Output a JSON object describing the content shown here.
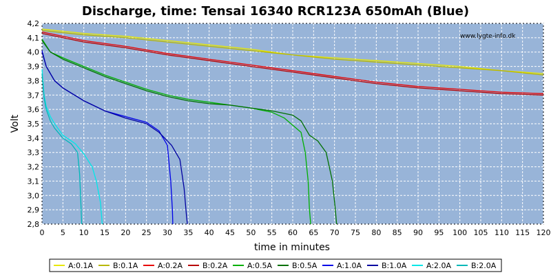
{
  "chart_data": {
    "type": "line",
    "title": "Discharge, time: Tensai 16340 RCR123A 650mAh (Blue)",
    "xlabel": "time in minutes",
    "ylabel": "Volt",
    "watermark": "www.lygte-info.dk",
    "xlim": [
      0,
      120
    ],
    "ylim": [
      2.8,
      4.2
    ],
    "xticks": [
      0,
      5,
      10,
      15,
      20,
      25,
      30,
      35,
      40,
      45,
      50,
      55,
      60,
      65,
      70,
      75,
      80,
      85,
      90,
      95,
      100,
      105,
      110,
      115,
      120
    ],
    "yticks": [
      "2,8",
      "2,9",
      "3,0",
      "3,1",
      "3,2",
      "3,3",
      "3,4",
      "3,5",
      "3,6",
      "3,7",
      "3,8",
      "3,9",
      "4,0",
      "4,1",
      "4,2"
    ],
    "grid": true,
    "legend_position": "bottom",
    "background": "#98b4d8",
    "series": [
      {
        "name": "A:0.1A",
        "color": "#e8e800",
        "points": [
          [
            0,
            4.16
          ],
          [
            10,
            4.13
          ],
          [
            20,
            4.11
          ],
          [
            30,
            4.08
          ],
          [
            40,
            4.05
          ],
          [
            50,
            4.02
          ],
          [
            60,
            3.98
          ],
          [
            70,
            3.96
          ],
          [
            80,
            3.94
          ],
          [
            90,
            3.92
          ],
          [
            100,
            3.9
          ],
          [
            110,
            3.87
          ],
          [
            120,
            3.85
          ]
        ]
      },
      {
        "name": "B:0.1A",
        "color": "#b8b800",
        "points": [
          [
            0,
            4.15
          ],
          [
            10,
            4.12
          ],
          [
            20,
            4.1
          ],
          [
            30,
            4.07
          ],
          [
            40,
            4.04
          ],
          [
            50,
            4.01
          ],
          [
            60,
            3.98
          ],
          [
            70,
            3.95
          ],
          [
            80,
            3.93
          ],
          [
            90,
            3.91
          ],
          [
            100,
            3.89
          ],
          [
            110,
            3.87
          ],
          [
            120,
            3.84
          ]
        ]
      },
      {
        "name": "A:0.2A",
        "color": "#e80000",
        "points": [
          [
            0,
            4.14
          ],
          [
            10,
            4.08
          ],
          [
            20,
            4.04
          ],
          [
            30,
            3.99
          ],
          [
            40,
            3.95
          ],
          [
            50,
            3.91
          ],
          [
            60,
            3.87
          ],
          [
            70,
            3.83
          ],
          [
            80,
            3.79
          ],
          [
            90,
            3.76
          ],
          [
            100,
            3.74
          ],
          [
            110,
            3.72
          ],
          [
            120,
            3.71
          ]
        ]
      },
      {
        "name": "B:0.2A",
        "color": "#b80000",
        "points": [
          [
            0,
            4.13
          ],
          [
            10,
            4.07
          ],
          [
            20,
            4.03
          ],
          [
            30,
            3.98
          ],
          [
            40,
            3.94
          ],
          [
            50,
            3.9
          ],
          [
            60,
            3.86
          ],
          [
            70,
            3.82
          ],
          [
            80,
            3.78
          ],
          [
            90,
            3.75
          ],
          [
            100,
            3.73
          ],
          [
            110,
            3.71
          ],
          [
            120,
            3.7
          ]
        ]
      },
      {
        "name": "A:0.5A",
        "color": "#00b000",
        "points": [
          [
            0,
            4.09
          ],
          [
            2,
            4.0
          ],
          [
            5,
            3.96
          ],
          [
            10,
            3.9
          ],
          [
            15,
            3.84
          ],
          [
            20,
            3.79
          ],
          [
            25,
            3.74
          ],
          [
            30,
            3.7
          ],
          [
            35,
            3.67
          ],
          [
            40,
            3.65
          ],
          [
            45,
            3.63
          ],
          [
            50,
            3.61
          ],
          [
            55,
            3.58
          ],
          [
            58,
            3.54
          ],
          [
            60,
            3.49
          ],
          [
            62,
            3.44
          ],
          [
            63,
            3.3
          ],
          [
            63.7,
            3.1
          ],
          [
            64,
            2.9
          ],
          [
            64.3,
            2.8
          ]
        ]
      },
      {
        "name": "B:0.5A",
        "color": "#007000",
        "points": [
          [
            0,
            4.08
          ],
          [
            2,
            4.0
          ],
          [
            5,
            3.95
          ],
          [
            10,
            3.89
          ],
          [
            15,
            3.83
          ],
          [
            20,
            3.78
          ],
          [
            25,
            3.73
          ],
          [
            30,
            3.69
          ],
          [
            35,
            3.66
          ],
          [
            40,
            3.64
          ],
          [
            45,
            3.63
          ],
          [
            50,
            3.61
          ],
          [
            55,
            3.59
          ],
          [
            60,
            3.56
          ],
          [
            62,
            3.52
          ],
          [
            63,
            3.47
          ],
          [
            64,
            3.42
          ],
          [
            66,
            3.38
          ],
          [
            68,
            3.3
          ],
          [
            69.5,
            3.1
          ],
          [
            70.2,
            2.9
          ],
          [
            70.5,
            2.8
          ]
        ]
      },
      {
        "name": "A:1.0A",
        "color": "#0000e8",
        "points": [
          [
            0,
            4.01
          ],
          [
            1,
            3.9
          ],
          [
            3,
            3.8
          ],
          [
            5,
            3.75
          ],
          [
            10,
            3.66
          ],
          [
            15,
            3.59
          ],
          [
            20,
            3.55
          ],
          [
            25,
            3.51
          ],
          [
            28,
            3.45
          ],
          [
            30,
            3.35
          ],
          [
            30.8,
            3.1
          ],
          [
            31.2,
            2.9
          ],
          [
            31.3,
            2.8
          ]
        ]
      },
      {
        "name": "B:1.0A",
        "color": "#0000a0",
        "points": [
          [
            0,
            4.0
          ],
          [
            1,
            3.9
          ],
          [
            3,
            3.8
          ],
          [
            5,
            3.75
          ],
          [
            10,
            3.66
          ],
          [
            15,
            3.59
          ],
          [
            20,
            3.54
          ],
          [
            25,
            3.5
          ],
          [
            28,
            3.44
          ],
          [
            31,
            3.35
          ],
          [
            33,
            3.25
          ],
          [
            34,
            3.05
          ],
          [
            34.6,
            2.85
          ],
          [
            34.8,
            2.8
          ]
        ]
      },
      {
        "name": "A:2.0A",
        "color": "#00e8e8",
        "points": [
          [
            0,
            3.88
          ],
          [
            0.5,
            3.7
          ],
          [
            1,
            3.62
          ],
          [
            2,
            3.55
          ],
          [
            3,
            3.5
          ],
          [
            5,
            3.42
          ],
          [
            8,
            3.36
          ],
          [
            10,
            3.29
          ],
          [
            12,
            3.2
          ],
          [
            13,
            3.1
          ],
          [
            14,
            2.95
          ],
          [
            14.4,
            2.8
          ]
        ]
      },
      {
        "name": "B:2.0A",
        "color": "#00b8b8",
        "points": [
          [
            0,
            3.85
          ],
          [
            0.5,
            3.68
          ],
          [
            1,
            3.6
          ],
          [
            2,
            3.52
          ],
          [
            3,
            3.47
          ],
          [
            5,
            3.4
          ],
          [
            7,
            3.36
          ],
          [
            8.5,
            3.3
          ],
          [
            9,
            3.15
          ],
          [
            9.3,
            2.95
          ],
          [
            9.5,
            2.8
          ]
        ]
      }
    ]
  }
}
